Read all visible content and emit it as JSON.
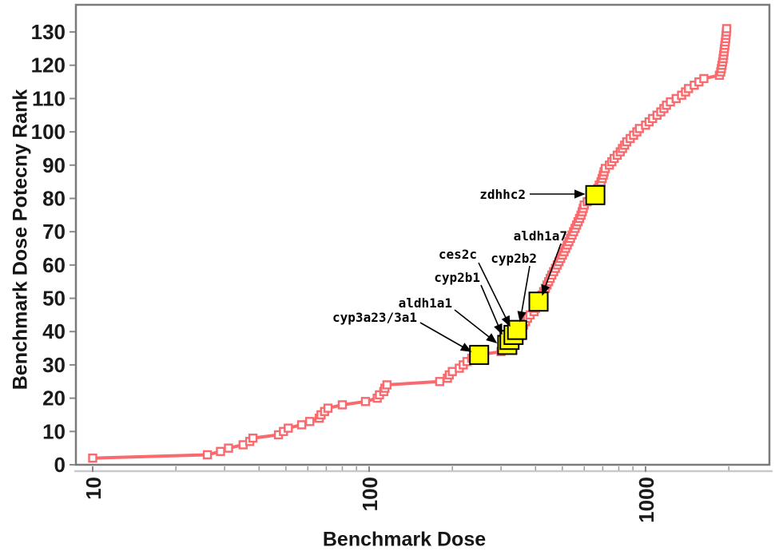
{
  "chart": {
    "x_axis_title": "Benchmark Dose",
    "y_axis_title": "Benchmark Dose Potecny Rank"
  },
  "chart_data": {
    "type": "line",
    "title": "",
    "xlabel": "Benchmark Dose",
    "ylabel": "Benchmark Dose Potecny Rank",
    "x_scale": "log",
    "xlim": [
      8.7,
      2800
    ],
    "ylim": [
      0,
      138
    ],
    "grid": false,
    "legend": "none",
    "x_major_ticks": [
      10,
      100,
      1000
    ],
    "x_major_tick_labels": [
      "10",
      "100",
      "1000"
    ],
    "y_ticks": [
      0,
      10,
      20,
      30,
      40,
      50,
      60,
      70,
      80,
      90,
      100,
      110,
      120,
      130
    ],
    "line_color": "#F86A6D",
    "marker_style": "open-square",
    "marker_fill": "#ffffff",
    "highlight_fill": "#FFFF00",
    "highlight_stroke": "#000000",
    "points": [
      [
        10,
        2
      ],
      [
        26,
        3
      ],
      [
        29,
        4
      ],
      [
        31,
        5
      ],
      [
        35,
        6
      ],
      [
        37,
        7
      ],
      [
        38,
        8
      ],
      [
        47,
        9
      ],
      [
        49,
        10
      ],
      [
        51,
        11
      ],
      [
        57,
        12
      ],
      [
        61,
        13
      ],
      [
        66,
        14
      ],
      [
        67,
        15
      ],
      [
        69,
        16
      ],
      [
        71,
        17
      ],
      [
        80,
        18
      ],
      [
        97,
        19
      ],
      [
        107,
        20
      ],
      [
        109,
        21
      ],
      [
        113,
        22
      ],
      [
        114,
        23
      ],
      [
        116,
        24
      ],
      [
        180,
        25
      ],
      [
        192,
        26
      ],
      [
        195,
        27
      ],
      [
        200,
        28
      ],
      [
        212,
        29
      ],
      [
        219,
        30
      ],
      [
        226,
        31
      ],
      [
        235,
        32
      ],
      [
        250,
        33
      ],
      [
        300,
        34
      ],
      [
        308,
        35
      ],
      [
        316,
        36
      ],
      [
        322,
        37
      ],
      [
        327,
        38
      ],
      [
        340,
        39
      ],
      [
        353,
        40
      ],
      [
        358,
        41
      ],
      [
        362,
        42
      ],
      [
        368,
        43
      ],
      [
        374,
        44
      ],
      [
        382,
        45
      ],
      [
        395,
        46
      ],
      [
        400,
        47
      ],
      [
        404,
        48
      ],
      [
        410,
        49
      ],
      [
        416,
        50
      ],
      [
        422,
        51
      ],
      [
        428,
        52
      ],
      [
        434,
        53
      ],
      [
        440,
        54
      ],
      [
        446,
        55
      ],
      [
        452,
        56
      ],
      [
        458,
        57
      ],
      [
        465,
        58
      ],
      [
        472,
        59
      ],
      [
        479,
        60
      ],
      [
        486,
        61
      ],
      [
        493,
        62
      ],
      [
        500,
        63
      ],
      [
        507,
        64
      ],
      [
        514,
        65
      ],
      [
        521,
        66
      ],
      [
        528,
        67
      ],
      [
        535,
        68
      ],
      [
        542,
        69
      ],
      [
        549,
        70
      ],
      [
        556,
        71
      ],
      [
        563,
        72
      ],
      [
        570,
        73
      ],
      [
        577,
        74
      ],
      [
        584,
        75
      ],
      [
        590,
        76
      ],
      [
        595,
        77
      ],
      [
        600,
        78
      ],
      [
        615,
        79
      ],
      [
        635,
        80
      ],
      [
        658,
        81
      ],
      [
        665,
        82
      ],
      [
        672,
        83
      ],
      [
        680,
        84
      ],
      [
        690,
        85
      ],
      [
        697,
        86
      ],
      [
        703,
        87
      ],
      [
        708,
        88
      ],
      [
        715,
        89
      ],
      [
        740,
        90
      ],
      [
        755,
        91
      ],
      [
        770,
        92
      ],
      [
        790,
        93
      ],
      [
        810,
        94
      ],
      [
        825,
        95
      ],
      [
        840,
        96
      ],
      [
        855,
        97
      ],
      [
        880,
        98
      ],
      [
        905,
        99
      ],
      [
        930,
        100
      ],
      [
        950,
        101
      ],
      [
        1000,
        102
      ],
      [
        1030,
        103
      ],
      [
        1060,
        104
      ],
      [
        1100,
        105
      ],
      [
        1135,
        106
      ],
      [
        1165,
        107
      ],
      [
        1190,
        108
      ],
      [
        1230,
        109
      ],
      [
        1290,
        110
      ],
      [
        1350,
        111
      ],
      [
        1395,
        112
      ],
      [
        1430,
        113
      ],
      [
        1500,
        114
      ],
      [
        1560,
        115
      ],
      [
        1625,
        116
      ],
      [
        1850,
        117
      ],
      [
        1870,
        118
      ],
      [
        1880,
        119
      ],
      [
        1890,
        120
      ],
      [
        1900,
        121
      ],
      [
        1908,
        122
      ],
      [
        1915,
        123
      ],
      [
        1922,
        124
      ],
      [
        1929,
        125
      ],
      [
        1936,
        126
      ],
      [
        1943,
        127
      ],
      [
        1950,
        128
      ],
      [
        1955,
        129
      ],
      [
        1960,
        130
      ],
      [
        1965,
        131
      ]
    ],
    "highlighted_genes": [
      {
        "label": "cyp3a23/3a1",
        "dose": 250,
        "rank": 33
      },
      {
        "label": "aldh1a1",
        "dose": 316,
        "rank": 36
      },
      {
        "label": "cyp2b1",
        "dose": 322,
        "rank": 37.5
      },
      {
        "label": "ces2c",
        "dose": 333,
        "rank": 39
      },
      {
        "label": "cyp2b2",
        "dose": 343,
        "rank": 40.5
      },
      {
        "label": "aldh1a7",
        "dose": 410,
        "rank": 49
      },
      {
        "label": "zdhhc2",
        "dose": 658,
        "rank": 81
      }
    ]
  }
}
